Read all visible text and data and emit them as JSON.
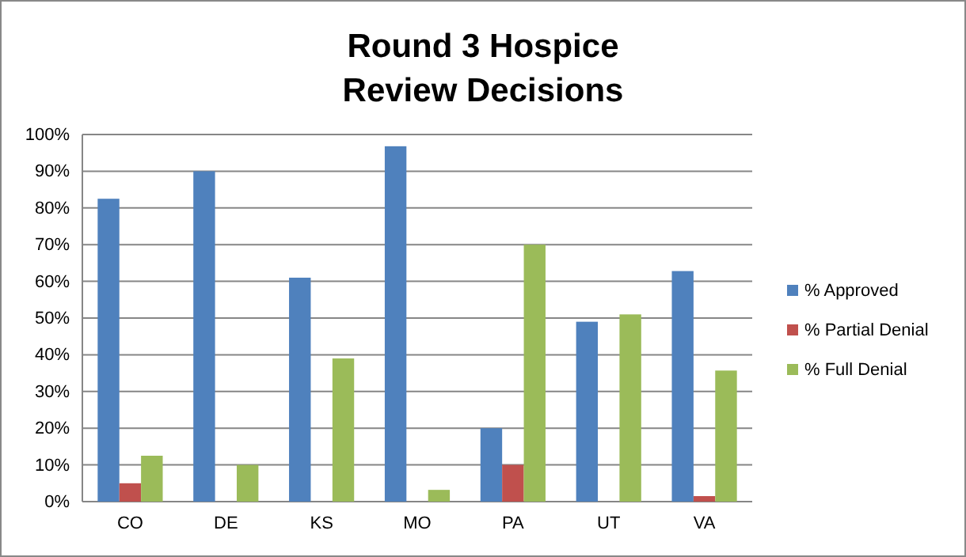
{
  "chart_data": {
    "type": "bar",
    "title": "Round 3 Hospice\nReview Decisions",
    "categories": [
      "CO",
      "DE",
      "KS",
      "MO",
      "PA",
      "UT",
      "VA"
    ],
    "series": [
      {
        "name": "% Approved",
        "color": "#4f81bd",
        "values": [
          82.5,
          90,
          61,
          96.8,
          20,
          49,
          62.8
        ]
      },
      {
        "name": "% Partial Denial",
        "color": "#c0504d",
        "values": [
          5,
          0,
          0,
          0,
          10,
          0,
          1.5
        ]
      },
      {
        "name": "% Full Denial",
        "color": "#9bbb59",
        "values": [
          12.5,
          10,
          39,
          3.2,
          70,
          51,
          35.7
        ]
      }
    ],
    "ylim": [
      0,
      100
    ],
    "yticks": [
      {
        "value": 0,
        "label": "0%"
      },
      {
        "value": 10,
        "label": "10%"
      },
      {
        "value": 20,
        "label": "20%"
      },
      {
        "value": 30,
        "label": "30%"
      },
      {
        "value": 40,
        "label": "40%"
      },
      {
        "value": 50,
        "label": "50%"
      },
      {
        "value": 60,
        "label": "60%"
      },
      {
        "value": 70,
        "label": "70%"
      },
      {
        "value": 80,
        "label": "80%"
      },
      {
        "value": 90,
        "label": "90%"
      },
      {
        "value": 100,
        "label": "100%"
      }
    ],
    "grid": "y",
    "legend": "right"
  }
}
